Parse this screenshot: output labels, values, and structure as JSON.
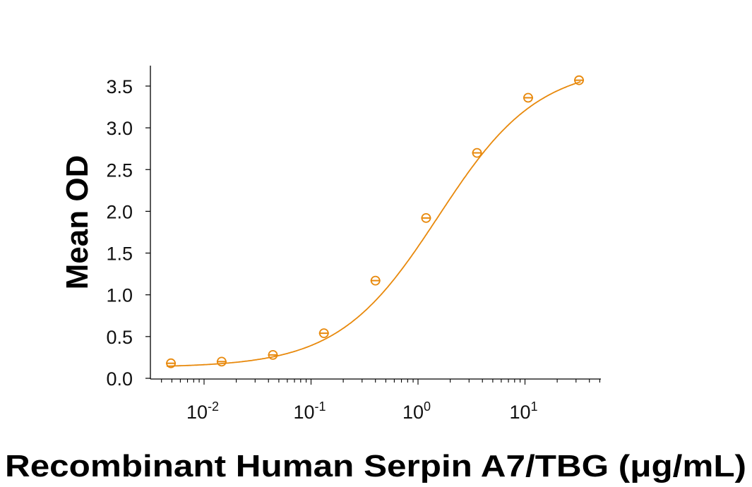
{
  "chart_data": {
    "type": "scatter",
    "title": "",
    "xlabel": "Recombinant Human Serpin A7/TBG (μg/mL)",
    "ylabel": "Mean OD",
    "xscale": "log",
    "xlim": [
      0.004,
      45
    ],
    "ylim": [
      0.0,
      3.7
    ],
    "yticks": [
      0.0,
      0.5,
      1.0,
      1.5,
      2.0,
      2.5,
      3.0,
      3.5
    ],
    "ytick_labels": [
      "0.0",
      "0.5",
      "1.0",
      "1.5",
      "2.0",
      "2.5",
      "3.0",
      "3.5"
    ],
    "xticks": [
      0.01,
      0.1,
      1,
      10
    ],
    "xtick_labels": [
      {
        "base": "10",
        "exp": "-2"
      },
      {
        "base": "10",
        "exp": "-1"
      },
      {
        "base": "10",
        "exp": "0"
      },
      {
        "base": "10",
        "exp": "1"
      }
    ],
    "grid": false,
    "legend": null,
    "series": [
      {
        "name": "Serpin A7/TBG",
        "color": "#E8890C",
        "marker": "circle-with-bar",
        "fit": "4PL sigmoidal",
        "x": [
          0.0049,
          0.0146,
          0.044,
          0.132,
          0.4,
          1.19,
          3.56,
          10.7,
          32.0
        ],
        "y": [
          0.18,
          0.2,
          0.28,
          0.54,
          1.17,
          1.92,
          2.7,
          3.36,
          3.57
        ]
      }
    ]
  }
}
